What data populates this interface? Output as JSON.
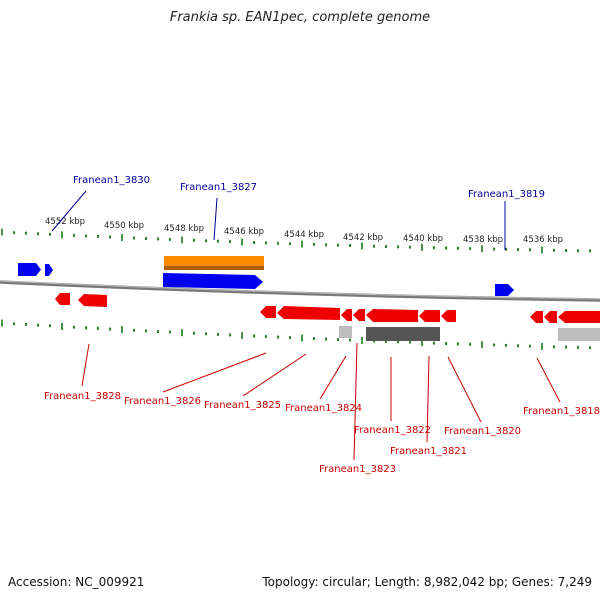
{
  "title": "Frankia sp. EAN1pec, complete genome",
  "footer": {
    "accession": "Accession: NC_009921",
    "summary": "Topology: circular; Length: 8,982,042 bp; Genes: 7,249"
  },
  "colors": {
    "forward_gene": "#0000ee",
    "reverse_gene": "#ee0000",
    "cds_orange": "#ff8c00",
    "label_forward": "#000099",
    "label_reverse": "#cc0000",
    "tick": "#1a7a1a",
    "backbone": "#7a7a7a"
  },
  "scale_labels": [
    "4552 kbp",
    "4550 kbp",
    "4548 kbp",
    "4546 kbp",
    "4544 kbp",
    "4542 kbp",
    "4540 kbp",
    "4538 kbp",
    "4536 kbp"
  ],
  "top_labels": [
    "Franean1_3830",
    "Franean1_3827",
    "Franean1_3819"
  ],
  "bottom_labels": [
    "Franean1_3828",
    "Franean1_3826",
    "Franean1_3825",
    "Franean1_3824",
    "Franean1_3823",
    "Franean1_3822",
    "Franean1_3821",
    "Franean1_3820",
    "Franean1_3818"
  ]
}
